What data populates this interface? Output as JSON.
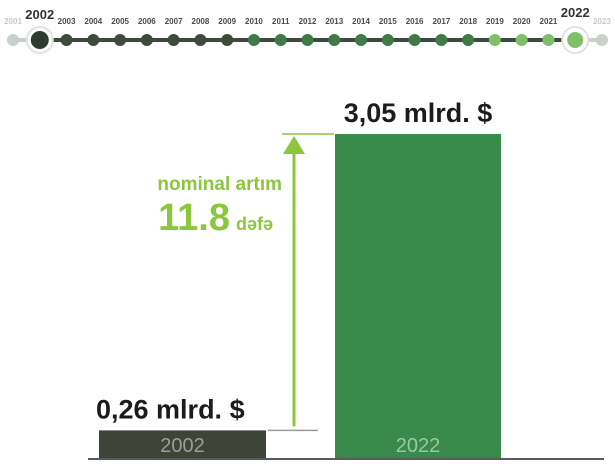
{
  "colors": {
    "dark_green": "#3e4a3c",
    "mid_green": "#3f7a4a",
    "light_green": "#7fbf6a",
    "accent_green": "#8cc63f",
    "bar_2002": "#3e4438",
    "bar_2022": "#3a8a4c",
    "faded": "#c9cfc9",
    "text_dark": "#1c1c1c",
    "baseline": "#5a5a5a"
  },
  "timeline": {
    "years": [
      "2001",
      "2002",
      "2003",
      "2004",
      "2005",
      "2006",
      "2007",
      "2008",
      "2009",
      "2010",
      "2011",
      "2012",
      "2013",
      "2014",
      "2015",
      "2016",
      "2017",
      "2018",
      "2019",
      "2020",
      "2021",
      "2022",
      "2023"
    ],
    "start_year": "2002",
    "end_year": "2022"
  },
  "annotation": {
    "line1": "nominal artım",
    "value": "11.8",
    "unit": "dəfə"
  },
  "chart_data": {
    "type": "bar",
    "categories": [
      "2002",
      "2022"
    ],
    "values": [
      0.26,
      3.05
    ],
    "value_labels": [
      "0,26 mlrd. $",
      "3,05 mlrd. $"
    ],
    "title": "",
    "xlabel": "",
    "ylabel": "",
    "ylim": [
      0,
      3.05
    ],
    "grid": false,
    "legend": "none"
  }
}
